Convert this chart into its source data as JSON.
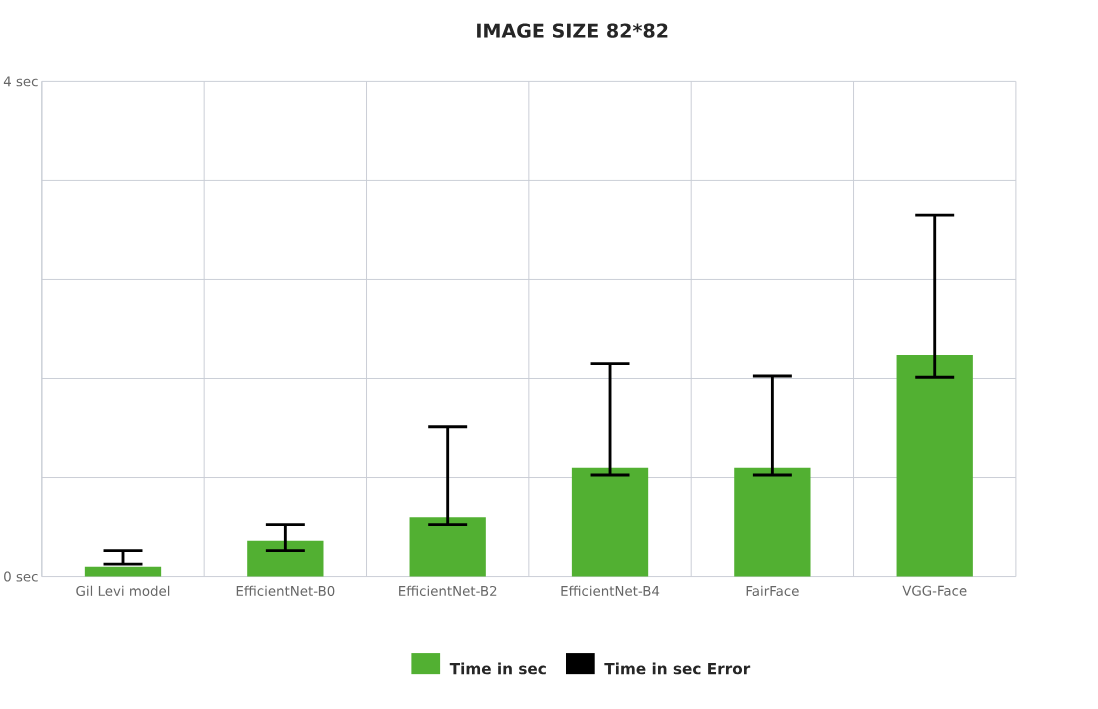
{
  "chart_data": {
    "type": "bar",
    "title": "IMAGE SIZE 82*82",
    "categories": [
      "Gil Levi model",
      "EfficientNet-B0",
      "EfficientNet-B2",
      "EfficientNet-B4",
      "FairFace",
      "VGG-Face"
    ],
    "series": [
      {
        "name": "Time in sec",
        "color": "#52b032",
        "values": [
          0.08,
          0.29,
          0.48,
          0.88,
          0.88,
          1.79
        ],
        "errors": [
          [
            0.1,
            0.21
          ],
          [
            0.21,
            0.42
          ],
          [
            0.42,
            1.21
          ],
          [
            0.82,
            1.72
          ],
          [
            0.82,
            1.62
          ],
          [
            1.61,
            2.92
          ]
        ]
      }
    ],
    "annotations": [
      "Time in sec Error"
    ],
    "ylim": [
      0,
      4
    ],
    "yticks": [
      {
        "value": 0,
        "label": "0 sec"
      },
      {
        "value": 0.8,
        "label": null
      },
      {
        "value": 1.6,
        "label": null
      },
      {
        "value": 2.4,
        "label": null
      },
      {
        "value": 3.2,
        "label": null
      },
      {
        "value": 4,
        "label": "4 sec"
      }
    ],
    "grid": true,
    "legend": "bottom"
  }
}
